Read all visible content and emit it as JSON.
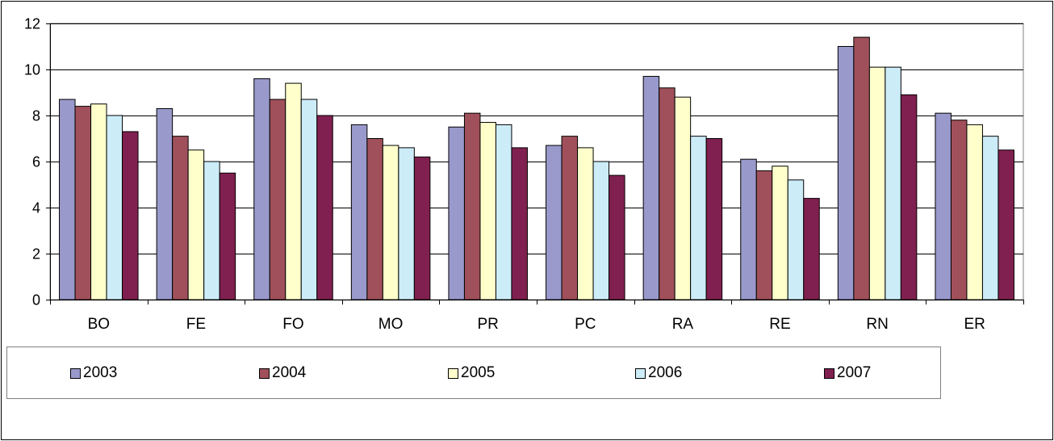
{
  "chart_data": {
    "type": "bar",
    "categories": [
      "BO",
      "FE",
      "FO",
      "MO",
      "PR",
      "PC",
      "RA",
      "RE",
      "RN",
      "ER"
    ],
    "series": [
      {
        "name": "2003",
        "color": "#9999cc",
        "values": [
          8.7,
          8.3,
          9.6,
          7.6,
          7.5,
          6.7,
          9.7,
          6.1,
          11.0,
          8.1
        ]
      },
      {
        "name": "2004",
        "color": "#a0505a",
        "values": [
          8.4,
          7.1,
          8.7,
          7.0,
          8.1,
          7.1,
          9.2,
          5.6,
          11.4,
          7.8
        ]
      },
      {
        "name": "2005",
        "color": "#ffffcc",
        "values": [
          8.5,
          6.5,
          9.4,
          6.7,
          7.7,
          6.6,
          8.8,
          5.8,
          10.1,
          7.6
        ]
      },
      {
        "name": "2006",
        "color": "#ccecf8",
        "values": [
          8.0,
          6.0,
          8.7,
          6.6,
          7.6,
          6.0,
          7.1,
          5.2,
          10.1,
          7.1
        ]
      },
      {
        "name": "2007",
        "color": "#802050",
        "values": [
          7.3,
          5.5,
          8.0,
          6.2,
          6.6,
          5.4,
          7.0,
          4.4,
          8.9,
          6.5
        ]
      }
    ],
    "ylim": [
      0,
      12
    ],
    "yticks": [
      0,
      2,
      4,
      6,
      8,
      10,
      12
    ],
    "grid": true,
    "legend": "bottom"
  }
}
